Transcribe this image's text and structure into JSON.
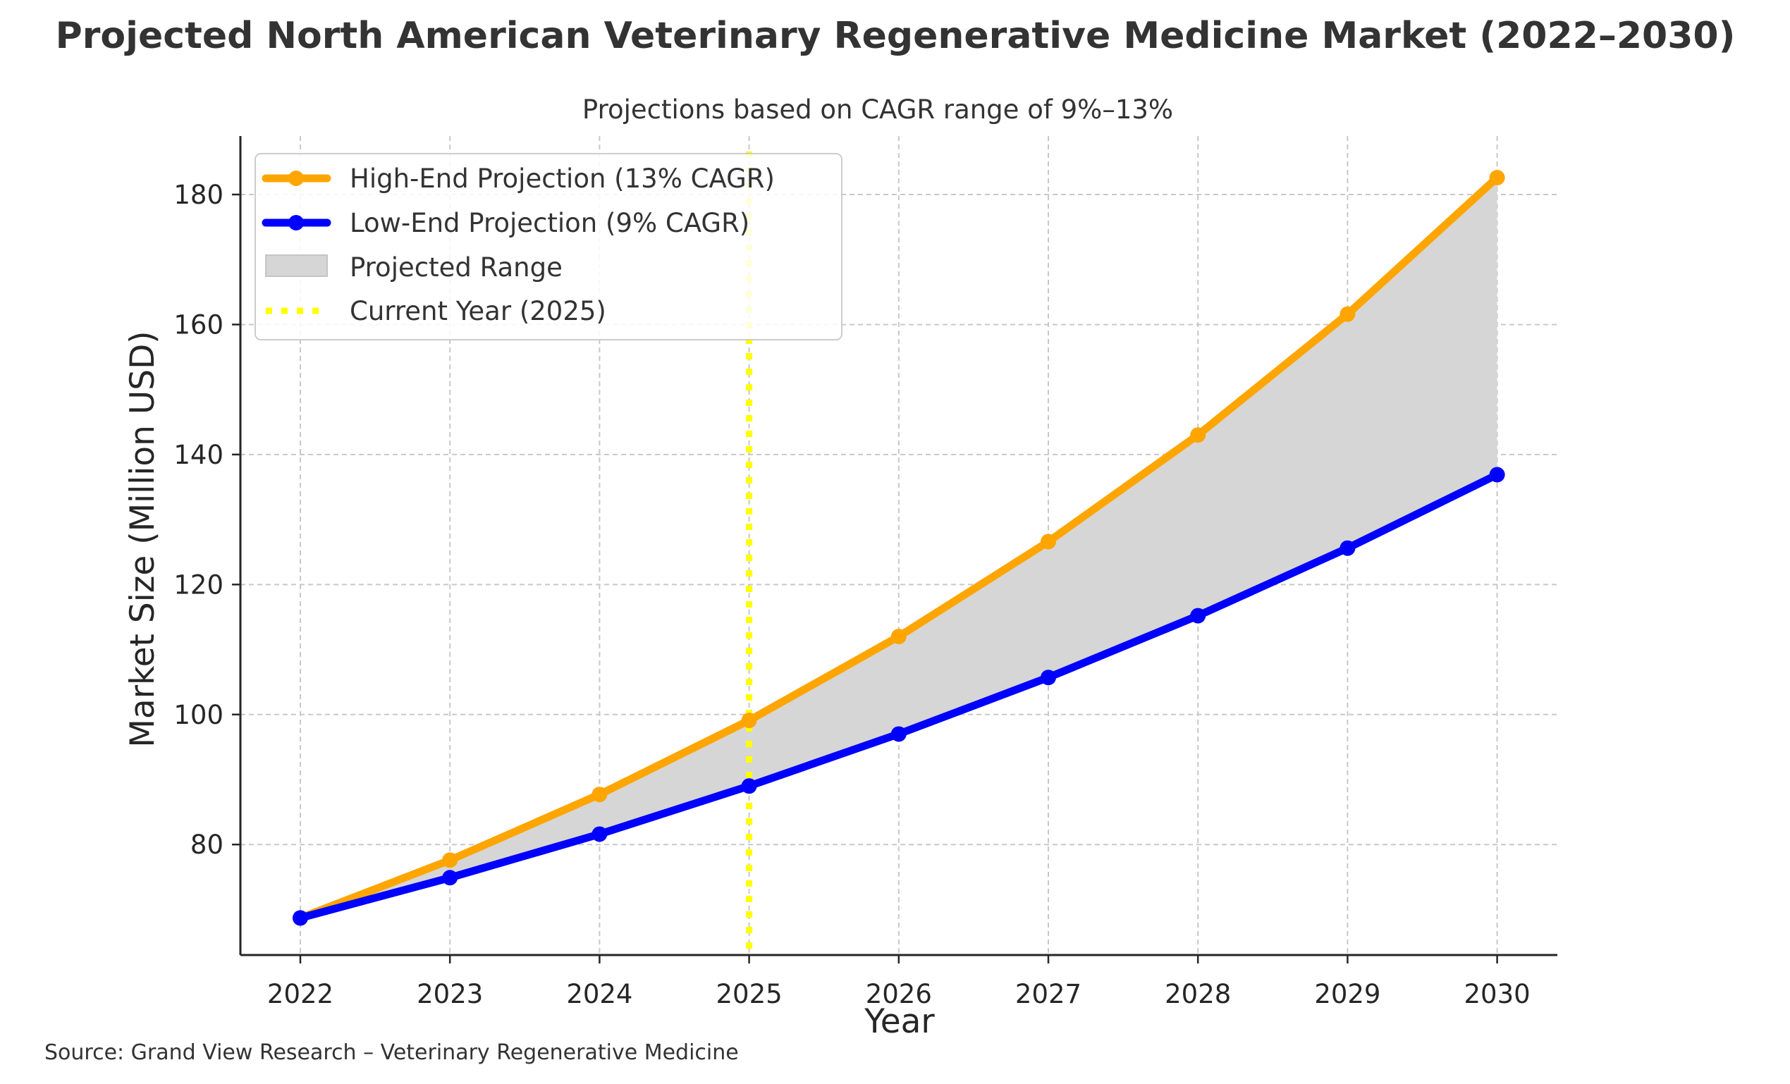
{
  "chart_data": {
    "type": "line",
    "title": "Projected North American Veterinary Regenerative Medicine Market (2022–2030)",
    "subtitle": "Projections based on CAGR range of 9%–13%",
    "xlabel": "Year",
    "ylabel": "Market Size (Million USD)",
    "categories": [
      "2022",
      "2023",
      "2024",
      "2025",
      "2026",
      "2027",
      "2028",
      "2029",
      "2030"
    ],
    "x": [
      2022,
      2023,
      2024,
      2025,
      2026,
      2027,
      2028,
      2029,
      2030
    ],
    "ylim": [
      63,
      189
    ],
    "yticks": [
      80,
      100,
      120,
      140,
      160,
      180
    ],
    "ytick_labels": [
      "80",
      "100",
      "120",
      "140",
      "160",
      "180"
    ],
    "grid": true,
    "series": [
      {
        "name": "High-End Projection (13% CAGR)",
        "color": "#FFA500",
        "values": [
          68.7,
          77.6,
          87.7,
          99.1,
          112.0,
          126.6,
          143.0,
          161.6,
          182.6
        ]
      },
      {
        "name": "Low-End Projection (9% CAGR)",
        "color": "#0000FF",
        "values": [
          68.7,
          74.9,
          81.6,
          89.0,
          97.0,
          105.7,
          115.2,
          125.6,
          136.9
        ]
      }
    ],
    "range_band": {
      "name": "Projected Range",
      "color": "#D6D6D6"
    },
    "reference_line": {
      "name": "Current Year (2025)",
      "x": 2025,
      "color": "#FFFF00"
    },
    "legend_position": "top-left",
    "source": "Source: Grand View Research – Veterinary Regenerative Medicine"
  }
}
